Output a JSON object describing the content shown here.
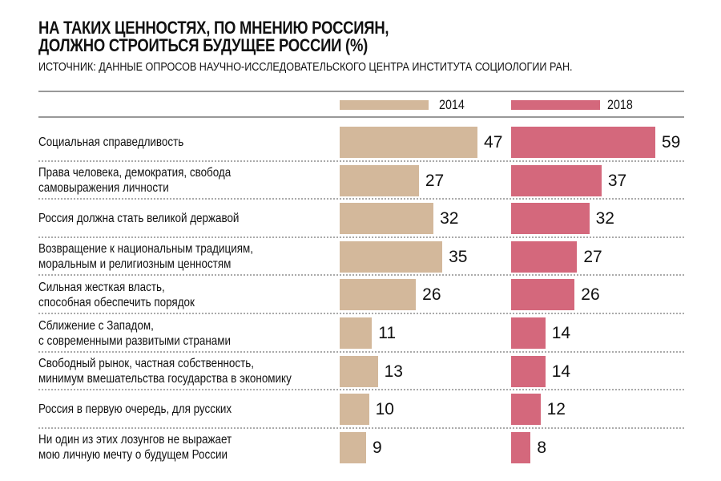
{
  "chart_data": {
    "type": "bar",
    "orientation": "horizontal",
    "title": "НА ТАКИХ ЦЕННОСТЯХ, ПО МНЕНИЮ РОССИЯН, ДОЛЖНО СТРОИТЬСЯ БУДУЩЕЕ РОССИИ (%)",
    "title_lines": [
      "НА ТАКИХ ЦЕННОСТЯХ, ПО МНЕНИЮ РОССИЯН,",
      "ДОЛЖНО СТРОИТЬСЯ БУДУЩЕЕ РОССИИ (%)"
    ],
    "source": "ИСТОЧНИК: ДАННЫЕ ОПРОСОВ НАУЧНО-ИССЛЕДОВАТЕЛЬСКОГО ЦЕНТРА ИНСТИТУТА СОЦИОЛОГИИ РАН.",
    "legend_placement": "top",
    "categories": [
      [
        "Социальная справедливость"
      ],
      [
        "Права человека, демократия, свобода",
        "самовыражения личности"
      ],
      [
        "Россия должна стать великой державой"
      ],
      [
        "Возвращение к национальным традициям,",
        "моральным и религиозным ценностям"
      ],
      [
        "Сильная жесткая власть,",
        "способная обеспечить порядок"
      ],
      [
        "Сближение с Западом,",
        "с современными развитыми странами"
      ],
      [
        "Свободный рынок, частная собственность,",
        "минимум вмешательства государства в экономику"
      ],
      [
        "Россия в первую очередь, для русских"
      ],
      [
        "Ни один из этих лозунгов не выражает",
        "мою личную мечту о будущем России"
      ]
    ],
    "series": [
      {
        "name": "2014",
        "color": "#d3b89b",
        "values": [
          47,
          27,
          32,
          35,
          26,
          11,
          13,
          10,
          9
        ]
      },
      {
        "name": "2018",
        "color": "#d4687c",
        "values": [
          59,
          37,
          32,
          27,
          26,
          14,
          14,
          12,
          8
        ]
      }
    ]
  }
}
